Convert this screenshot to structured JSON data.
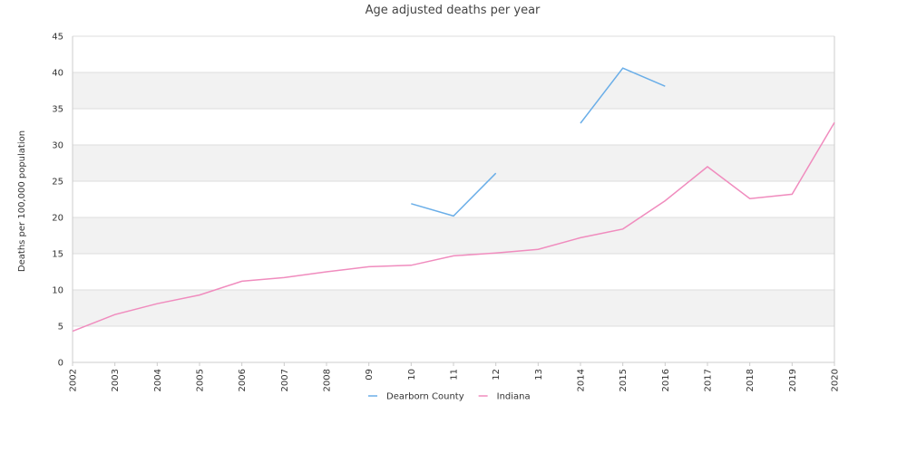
{
  "chart_data": {
    "type": "line",
    "title": "Age adjusted deaths per year",
    "xlabel": "",
    "ylabel": "Deaths per 100,000 population",
    "ylim": [
      0,
      45
    ],
    "yticks": [
      0,
      5,
      10,
      15,
      20,
      25,
      30,
      35,
      40,
      45
    ],
    "categories": [
      "2002",
      "2003",
      "2004",
      "2005",
      "2006",
      "2007",
      "2008",
      "09",
      "10",
      "11",
      "12",
      "13",
      "2014",
      "2015",
      "2016",
      "2017",
      "2018",
      "2019",
      "2020"
    ],
    "grid": "horizontal bands",
    "legend_position": "bottom-center",
    "series": [
      {
        "name": "Dearborn County",
        "color": "#6aaee8",
        "values": [
          null,
          null,
          null,
          null,
          null,
          null,
          null,
          null,
          21.9,
          20.2,
          26.1,
          null,
          33.0,
          40.6,
          38.1,
          null,
          null,
          null,
          null
        ]
      },
      {
        "name": "Indiana",
        "color": "#f08cbe",
        "values": [
          4.3,
          6.6,
          8.1,
          9.3,
          11.2,
          11.7,
          12.5,
          13.2,
          13.4,
          14.7,
          15.1,
          15.6,
          17.2,
          18.4,
          22.3,
          27.0,
          22.6,
          23.2,
          33.1
        ]
      }
    ]
  },
  "colors": {
    "band": "#f2f2f2",
    "gridline": "#dddddd",
    "axis": "#cccccc"
  }
}
